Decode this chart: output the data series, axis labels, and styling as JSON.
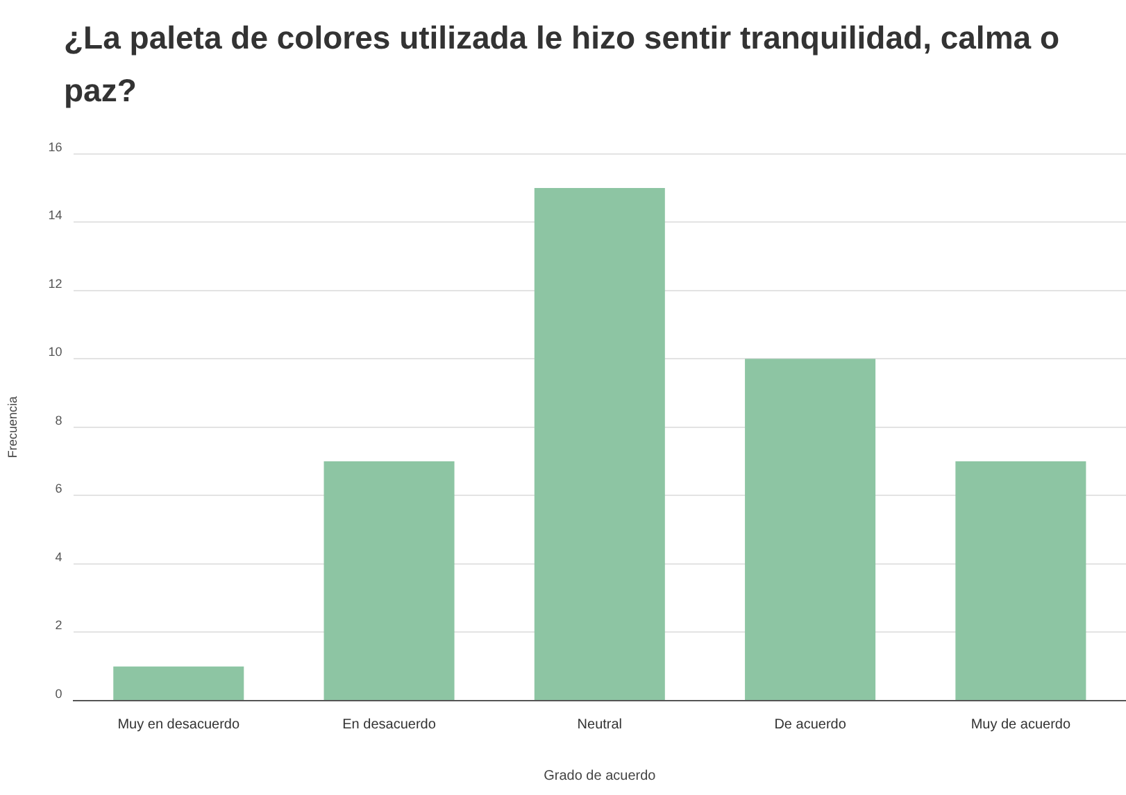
{
  "chart_data": {
    "type": "bar",
    "title": "¿La paleta de colores utilizada le hizo sentir tranquilidad, calma o paz?",
    "xlabel": "Grado de acuerdo",
    "ylabel": "Frecuencia",
    "categories": [
      "Muy en desacuerdo",
      "En desacuerdo",
      "Neutral",
      "De acuerdo",
      "Muy de acuerdo"
    ],
    "values": [
      1,
      7,
      15,
      10,
      7
    ],
    "color": "#8dc5a3",
    "ylim": [
      0,
      16
    ],
    "yticks": [
      0,
      2,
      4,
      6,
      8,
      10,
      12,
      14,
      16
    ],
    "grid": "y"
  }
}
